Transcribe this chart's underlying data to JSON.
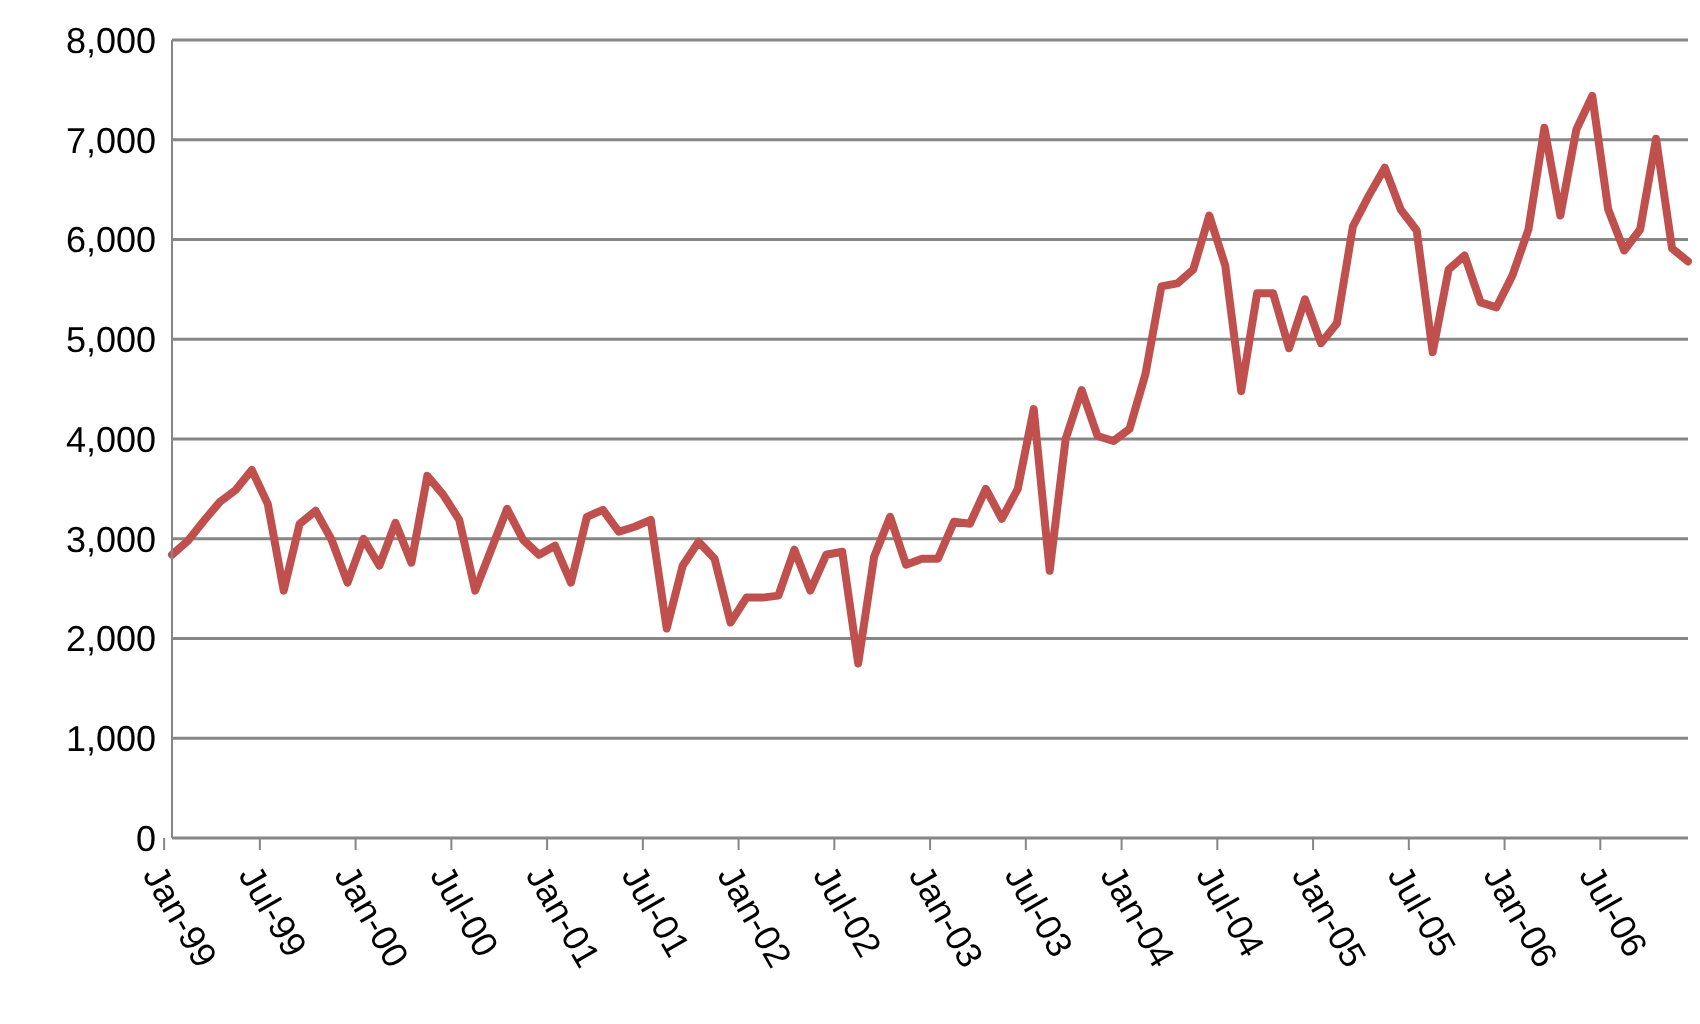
{
  "chart_data": {
    "type": "line",
    "categories": [
      "Jan-99",
      null,
      null,
      null,
      null,
      null,
      "Jul-99",
      null,
      null,
      null,
      null,
      null,
      "Jan-00",
      null,
      null,
      null,
      null,
      null,
      "Jul-00",
      null,
      null,
      null,
      null,
      null,
      "Jan-01",
      null,
      null,
      null,
      null,
      null,
      "Jul-01",
      null,
      null,
      null,
      null,
      null,
      "Jan-02",
      null,
      null,
      null,
      null,
      null,
      "Jul-02",
      null,
      null,
      null,
      null,
      null,
      "Jan-03",
      null,
      null,
      null,
      null,
      null,
      "Jul-03",
      null,
      null,
      null,
      null,
      null,
      "Jan-04",
      null,
      null,
      null,
      null,
      null,
      "Jul-04",
      null,
      null,
      null,
      null,
      null,
      "Jan-05",
      null,
      null,
      null,
      null,
      null,
      "Jul-05",
      null,
      null,
      null,
      null,
      null,
      "Jan-06",
      null,
      null,
      null,
      null,
      null,
      "Jul-06",
      null,
      null,
      null,
      null,
      null
    ],
    "series": [
      {
        "color": "#c0504d",
        "values": [
          2840,
          2980,
          3180,
          3370,
          3490,
          3690,
          3350,
          2480,
          3150,
          3280,
          2990,
          2560,
          3000,
          2730,
          3160,
          2760,
          3630,
          3440,
          3190,
          2480,
          2890,
          3300,
          2990,
          2840,
          2930,
          2560,
          3220,
          3290,
          3070,
          3120,
          3190,
          2100,
          2730,
          2970,
          2800,
          2160,
          2410,
          2410,
          2430,
          2890,
          2480,
          2840,
          2870,
          1750,
          2820,
          3220,
          2740,
          2800,
          2800,
          3170,
          3150,
          3500,
          3200,
          3500,
          4300,
          2680,
          4000,
          4490,
          4030,
          3980,
          4100,
          4650,
          5530,
          5560,
          5700,
          6240,
          5740,
          4480,
          5460,
          5460,
          4910,
          5400,
          4960,
          5160,
          6130,
          6440,
          6720,
          6300,
          6090,
          4870,
          5700,
          5840,
          5370,
          5320,
          5640,
          6100,
          7120,
          6240,
          7100,
          7440,
          6300,
          5890,
          6100,
          7010,
          5910,
          5780
        ]
      }
    ],
    "ylim": [
      0,
      8000
    ],
    "yticks": [
      {
        "value": 0,
        "label": "0"
      },
      {
        "value": 1000,
        "label": "1,000"
      },
      {
        "value": 2000,
        "label": "2,000"
      },
      {
        "value": 3000,
        "label": "3,000"
      },
      {
        "value": 4000,
        "label": "4,000"
      },
      {
        "value": 5000,
        "label": "5,000"
      },
      {
        "value": 6000,
        "label": "6,000"
      },
      {
        "value": 7000,
        "label": "7,000"
      },
      {
        "value": 8000,
        "label": "8,000"
      }
    ],
    "grid": "y",
    "marker": "none",
    "line_style": "solid"
  }
}
